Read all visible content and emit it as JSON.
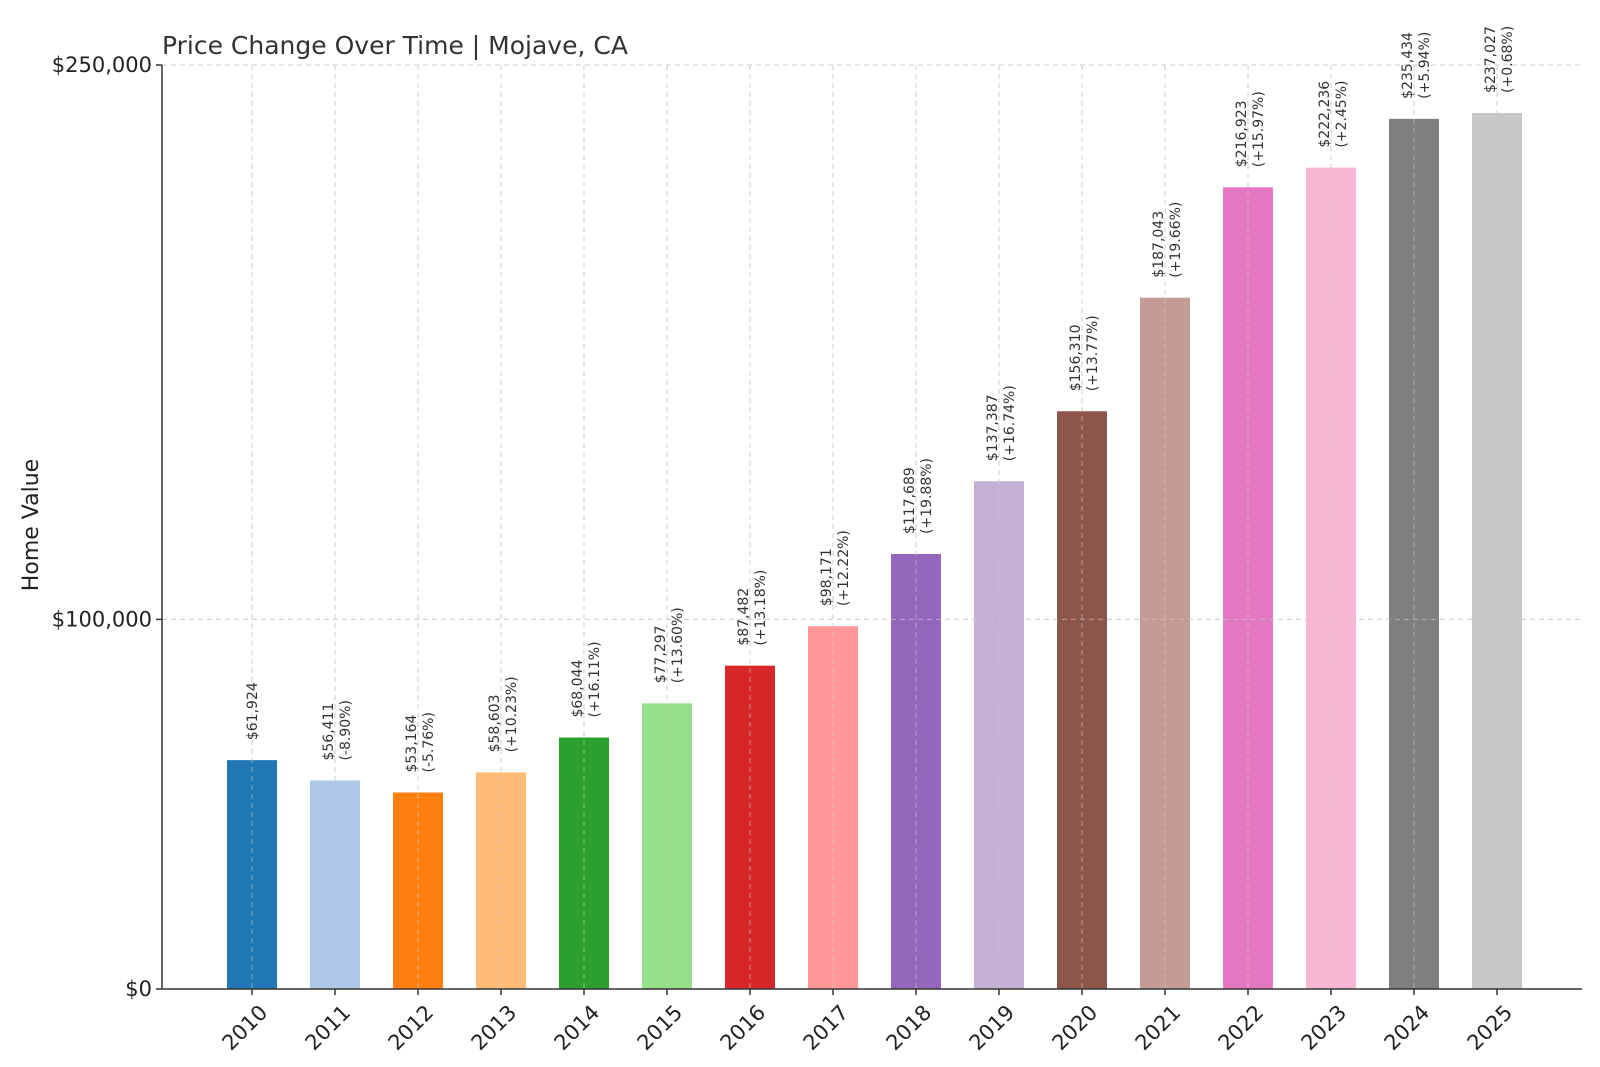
{
  "chart_data": {
    "type": "bar",
    "title": "Price Change Over Time | Mojave, CA",
    "xlabel": "",
    "ylabel": "Home Value",
    "ylim": [
      0,
      250000
    ],
    "yticks": [
      {
        "value": 0,
        "label": "$0"
      },
      {
        "value": 100000,
        "label": "$100,000"
      },
      {
        "value": 250000,
        "label": "$250,000"
      }
    ],
    "grid": true,
    "categories": [
      "2010",
      "2011",
      "2012",
      "2013",
      "2014",
      "2015",
      "2016",
      "2017",
      "2018",
      "2019",
      "2020",
      "2021",
      "2022",
      "2023",
      "2024",
      "2025"
    ],
    "values": [
      61924,
      56411,
      53164,
      58603,
      68044,
      77297,
      87482,
      98171,
      117689,
      137387,
      156310,
      187043,
      216923,
      222236,
      235434,
      237027
    ],
    "value_labels": [
      "$61,924",
      "$56,411",
      "$53,164",
      "$58,603",
      "$68,044",
      "$77,297",
      "$87,482",
      "$98,171",
      "$117,689",
      "$137,387",
      "$156,310",
      "$187,043",
      "$216,923",
      "$222,236",
      "$235,434",
      "$237,027"
    ],
    "change_labels": [
      "",
      "(-8.90%)",
      "(-5.76%)",
      "(+10.23%)",
      "(+16.11%)",
      "(+13.60%)",
      "(+13.18%)",
      "(+12.22%)",
      "(+19.88%)",
      "(+16.74%)",
      "(+13.77%)",
      "(+19.66%)",
      "(+15.97%)",
      "(+2.45%)",
      "(+5.94%)",
      "(+0.68%)"
    ],
    "colors": [
      "#1f77b4",
      "#aec7e8",
      "#ff7f0e",
      "#ffbb78",
      "#2ca02c",
      "#98df8a",
      "#d62728",
      "#ff9896",
      "#9467bd",
      "#c5b0d5",
      "#8c564b",
      "#c49c94",
      "#e377c2",
      "#f7b6d2",
      "#7f7f7f",
      "#c7c7c7"
    ]
  }
}
